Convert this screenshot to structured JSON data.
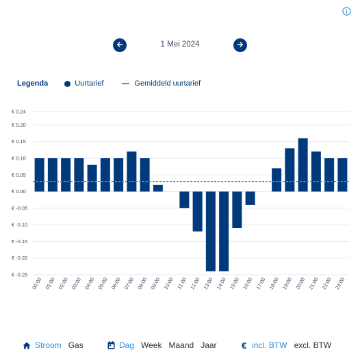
{
  "header": {
    "info_icon": "info-icon"
  },
  "date_nav": {
    "date": "1 Mei 2024",
    "prev_icon": "arrow-left-icon",
    "next_icon": "arrow-right-icon"
  },
  "legend": {
    "title": "Legenda",
    "items": [
      {
        "label": "Uurtarief",
        "icon": "dot"
      },
      {
        "label": "Gemiddeld uurtarief",
        "icon": "dashed-line"
      }
    ]
  },
  "colors": {
    "bar": "#003a7d",
    "average_line": "#2a9fd8",
    "accent": "#2a8dd6"
  },
  "chart_data": {
    "type": "bar",
    "categories": [
      "00:00",
      "01:00",
      "02:00",
      "03:00",
      "04:00",
      "05:00",
      "06:00",
      "07:00",
      "08:00",
      "09:00",
      "10:00",
      "11:00",
      "12:00",
      "13:00",
      "14:00",
      "15:00",
      "16:00",
      "17:00",
      "18:00",
      "19:00",
      "20:00",
      "21:00",
      "22:00",
      "23:00"
    ],
    "values": [
      0.1,
      0.1,
      0.1,
      0.1,
      0.08,
      0.1,
      0.1,
      0.12,
      0.1,
      0.02,
      0,
      -0.05,
      -0.12,
      -0.24,
      -0.24,
      -0.11,
      -0.04,
      0,
      0.07,
      0.13,
      0.16,
      0.12,
      0.1,
      0.1
    ],
    "average": 0.03,
    "y_ticks": [
      0.24,
      0.2,
      0.15,
      0.1,
      0.05,
      0.0,
      -0.05,
      -0.1,
      -0.15,
      -0.2,
      -0.25
    ],
    "y_tick_labels": [
      "€ 0.24",
      "€ 0.20",
      "€ 0.15",
      "€ 0.10",
      "€ 0.05",
      "€ 0.00",
      "€ -0.05",
      "€ -0.10",
      "€ -0.15",
      "€ -0.20",
      "€ -0.25"
    ],
    "ylim": [
      -0.25,
      0.24
    ],
    "grid": true
  },
  "bottom_bar": {
    "energy": {
      "icon": "home-icon",
      "options": [
        "Stroom",
        "Gas"
      ],
      "active": "Stroom"
    },
    "period": {
      "icon": "calendar-icon",
      "options": [
        "Dag",
        "Week",
        "Maand",
        "Jaar"
      ],
      "active": "Dag"
    },
    "tax": {
      "icon": "euro-icon",
      "symbol": "€",
      "options": [
        "incl. BTW",
        "excl. BTW"
      ],
      "active": "incl. BTW"
    }
  }
}
